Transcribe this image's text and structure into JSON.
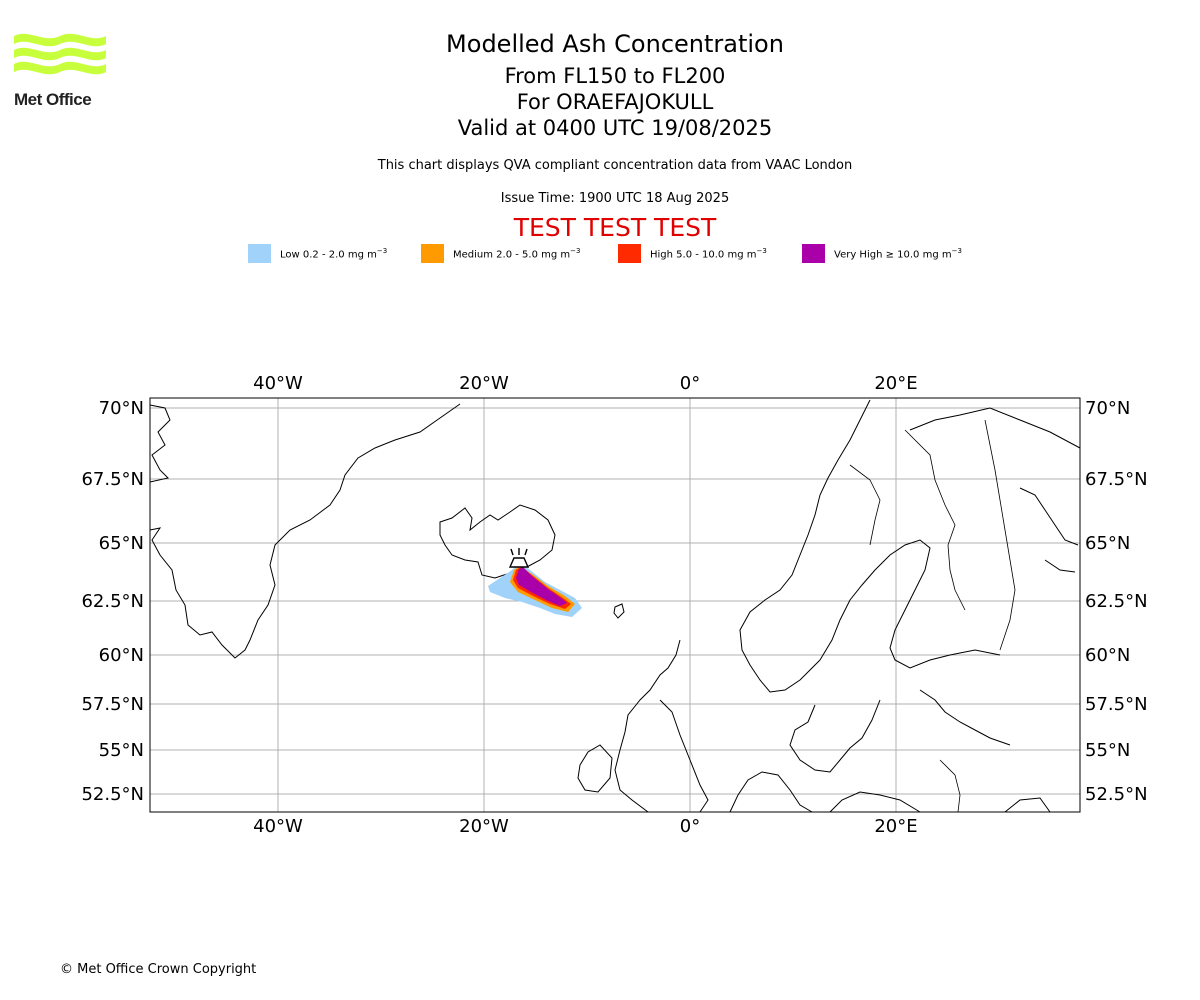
{
  "logo": {
    "text": "Met Office",
    "color": "#c8ff3c"
  },
  "header": {
    "title": "Modelled Ash Concentration",
    "levels": "From FL150 to FL200",
    "volcano": "For ORAEFAJOKULL",
    "valid": "Valid at 0400 UTC 19/08/2025",
    "subtitle": "This chart displays QVA compliant concentration data from VAAC London",
    "issue_time": "Issue Time: 1900 UTC 18 Aug 2025",
    "test_banner": "TEST TEST TEST"
  },
  "legend": [
    {
      "label": "Low 0.2 - 2.0 mg m",
      "sup": "−3",
      "color": "#a0d2fa"
    },
    {
      "label": "Medium 2.0 - 5.0 mg m",
      "sup": "−3",
      "color": "#ff9a00"
    },
    {
      "label": "High 5.0 - 10.0 mg m",
      "sup": "−3",
      "color": "#ff2a00"
    },
    {
      "label": "Very High  ≥  10.0 mg m",
      "sup": "−3",
      "color": "#aa00aa"
    }
  ],
  "map": {
    "lon_labels": [
      "40°W",
      "20°W",
      "0°",
      "20°E"
    ],
    "lat_labels": [
      "70°N",
      "67.5°N",
      "65°N",
      "62.5°N",
      "60°N",
      "57.5°N",
      "55°N",
      "52.5°N"
    ],
    "volcano_icon": "volcano-icon"
  },
  "footer": {
    "copyright": "© Met Office Crown Copyright"
  }
}
